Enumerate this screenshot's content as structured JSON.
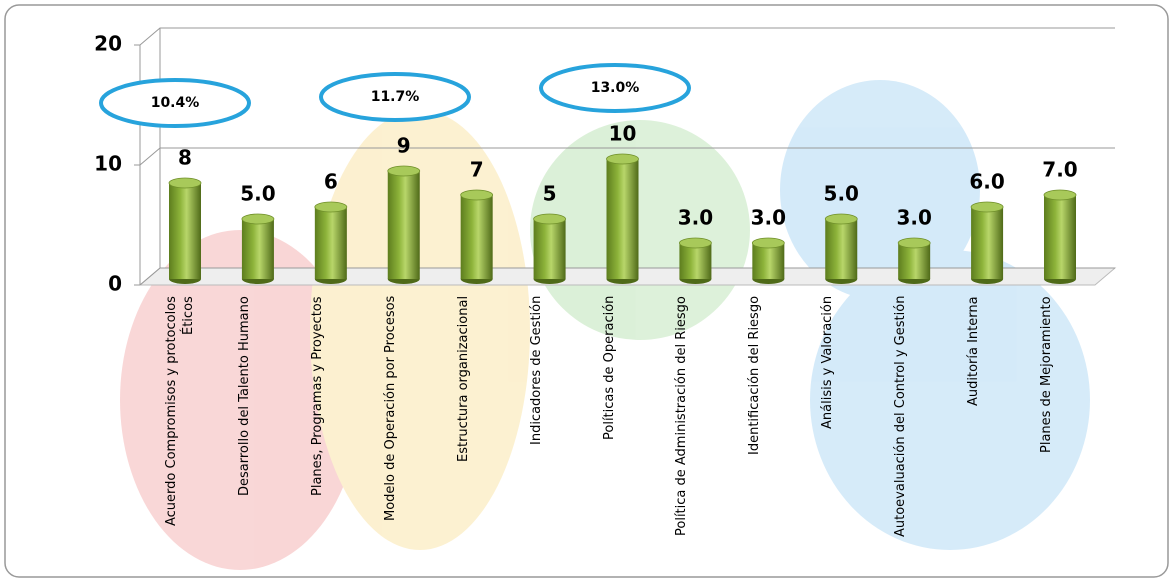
{
  "chart_data": {
    "type": "bar",
    "categories": [
      "Acuerdo Compromisos y protocolos Éticos",
      "Desarrollo del Talento Humano",
      "Planes, Programas y Proyectos",
      "Modelo de Operación por Procesos",
      "Estructura organizacional",
      "Indicadores de Gestión",
      "Políticas de Operación",
      "Política de Administración del Riesgo",
      "Identificación del Riesgo",
      "Análisis y Valoración",
      "Autoevaluación del Control y Gestión",
      "Auditoría Interna",
      "Planes de Mejoramiento"
    ],
    "values": [
      8,
      5,
      6,
      9,
      7,
      5,
      10,
      3,
      3,
      5,
      3,
      6,
      7
    ],
    "value_labels": [
      "8",
      "5.0",
      "6",
      "9",
      "7",
      "5",
      "10",
      "3.0",
      "3.0",
      "5.0",
      "3.0",
      "6.0",
      "7.0"
    ],
    "color": "#8db33a",
    "ylim": [
      0,
      20
    ],
    "yticks": [
      0,
      10,
      20
    ],
    "grid": true,
    "annotations": [
      "10.4%",
      "11.7%",
      "13.0%"
    ]
  }
}
